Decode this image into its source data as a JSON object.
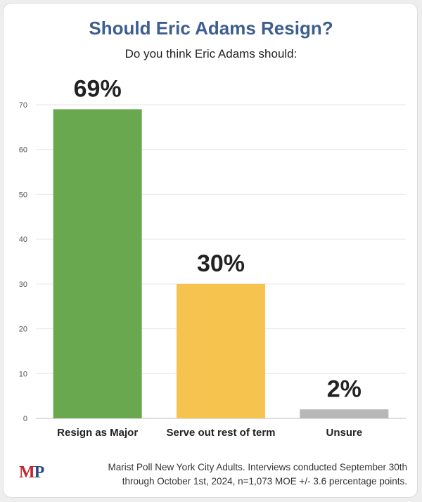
{
  "header": {
    "title": "Should Eric Adams Resign?",
    "subtitle": "Do you think Eric Adams should:"
  },
  "colors": {
    "title": "#3d5e8e",
    "grid": "#e6e6e6"
  },
  "chart_data": {
    "type": "bar",
    "title": "Should Eric Adams Resign?",
    "subtitle": "Do you think Eric Adams should:",
    "categories": [
      "Resign as Major",
      "Serve out rest of term",
      "Unsure"
    ],
    "values": [
      69,
      30,
      2
    ],
    "data_labels": [
      "69%",
      "30%",
      "2%"
    ],
    "colors": [
      "#6aa84f",
      "#f6c34f",
      "#b7b7b7"
    ],
    "ylim": [
      0,
      70
    ],
    "yticks": [
      0,
      10,
      20,
      30,
      40,
      50,
      60,
      70
    ],
    "grid": true,
    "legend": "none"
  },
  "footer": {
    "logo_m": "M",
    "logo_p": "P",
    "note_line1": "Marist Poll New York City Adults. Interviews conducted September 30th",
    "note_line2": "through October 1st, 2024, n=1,073 MOE +/- 3.6 percentage points."
  }
}
